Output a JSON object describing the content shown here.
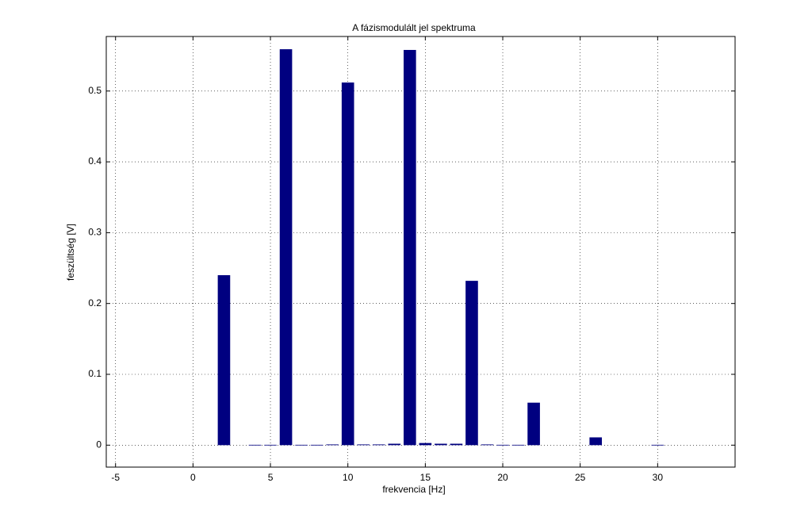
{
  "chart_data": {
    "type": "bar",
    "title": "A fázismodulált jel spektruma",
    "x_label": "frekvencia [Hz]",
    "y_label": "feszültség [V]",
    "x": [
      2,
      4,
      5,
      6,
      7,
      8,
      9,
      10,
      11,
      12,
      13,
      14,
      15,
      16,
      17,
      18,
      19,
      20,
      21,
      22,
      26,
      30
    ],
    "values": [
      0.24,
      0.0005,
      0.0005,
      0.559,
      0.0005,
      0.0005,
      0.001,
      0.512,
      0.001,
      0.001,
      0.002,
      0.558,
      0.003,
      0.002,
      0.002,
      0.232,
      0.001,
      0.0005,
      0.0005,
      0.06,
      0.011,
      0.0005
    ],
    "color": "#000080",
    "xlim": [
      -5.6,
      35.0
    ],
    "ylim": [
      -0.031,
      0.577
    ],
    "xticks": [
      -5,
      0,
      5,
      10,
      15,
      20,
      25,
      30
    ],
    "yticks": [
      0,
      0.1,
      0.2,
      0.3,
      0.4,
      0.5
    ],
    "grid": true
  }
}
